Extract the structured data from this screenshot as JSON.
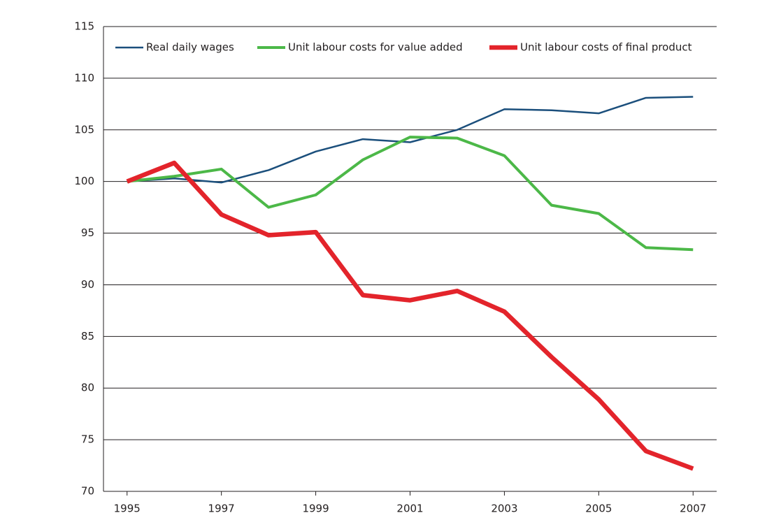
{
  "chart_data": {
    "type": "line",
    "x": [
      1995,
      1996,
      1997,
      1998,
      1999,
      2000,
      2001,
      2002,
      2003,
      2004,
      2005,
      2006,
      2007
    ],
    "series": [
      {
        "name": "Real daily wages",
        "color": "#1b4f7c",
        "values": [
          100,
          100.3,
          99.9,
          101.1,
          102.9,
          104.1,
          103.8,
          105.0,
          107.0,
          106.9,
          106.6,
          108.1,
          108.2
        ]
      },
      {
        "name": "Unit labour costs for value added",
        "color": "#4cb848",
        "values": [
          100,
          100.5,
          101.2,
          97.5,
          98.7,
          102.1,
          104.3,
          104.2,
          102.5,
          97.7,
          96.9,
          93.6,
          93.4
        ]
      },
      {
        "name": "Unit labour costs of final product",
        "color": "#e3242b",
        "values": [
          100,
          101.8,
          96.8,
          94.8,
          95.1,
          89.0,
          88.5,
          89.4,
          87.4,
          83.0,
          78.9,
          73.9,
          72.2
        ]
      }
    ],
    "xlim": [
      1994.5,
      2007.5
    ],
    "xticks": [
      1995,
      1997,
      1999,
      2001,
      2003,
      2005,
      2007
    ],
    "ylim": [
      70,
      115
    ],
    "yticks": [
      70,
      75,
      80,
      85,
      90,
      95,
      100,
      105,
      110,
      115
    ],
    "grid": true,
    "legend": "top"
  }
}
